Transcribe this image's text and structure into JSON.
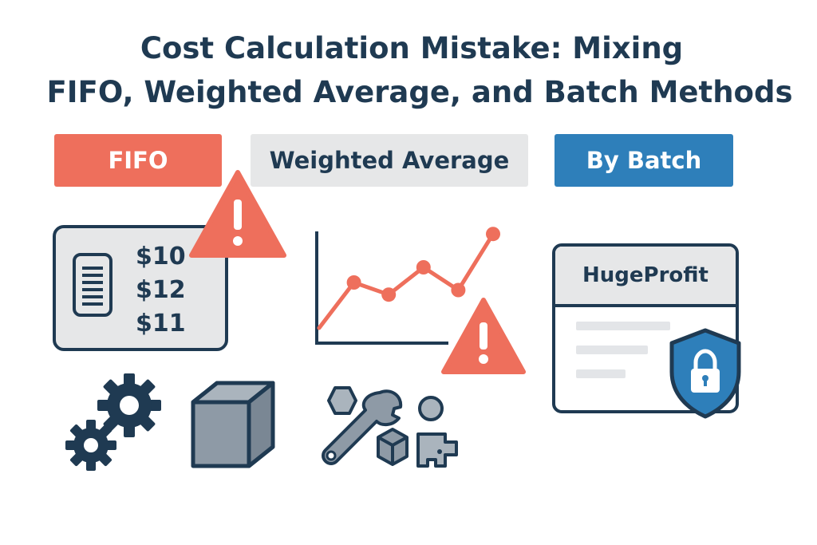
{
  "title": {
    "line1": "Cost Calculation Mistake: Mixing",
    "line2": "FIFO, Weighted Average, and Batch Methods"
  },
  "methods": [
    {
      "label": "FIFO",
      "color": "#ee6f5c"
    },
    {
      "label": "Weighted Average",
      "color": "#e6e7e8"
    },
    {
      "label": "By Batch",
      "color": "#2e7fba"
    }
  ],
  "price_card": {
    "prices": [
      "$10",
      "$12",
      "$11"
    ],
    "icon": "document-icon"
  },
  "app": {
    "name": "HugeProfit",
    "icon": "shield-lock-icon"
  },
  "icons": [
    "warning-icon",
    "gears-icon",
    "box-icon",
    "tools-icon",
    "worker-icon"
  ],
  "colors": {
    "navy": "#1f3a52",
    "coral": "#ee6f5c",
    "blue": "#2e7fba",
    "light_gray": "#e6e7e8",
    "slate": "#8e9aa6"
  },
  "chart_data": {
    "type": "line",
    "values": [
      1,
      4,
      3.2,
      5,
      3.5,
      7.2
    ],
    "title": "",
    "xlabel": "",
    "ylabel": "",
    "ylim": [
      0,
      8
    ],
    "grid": false
  }
}
